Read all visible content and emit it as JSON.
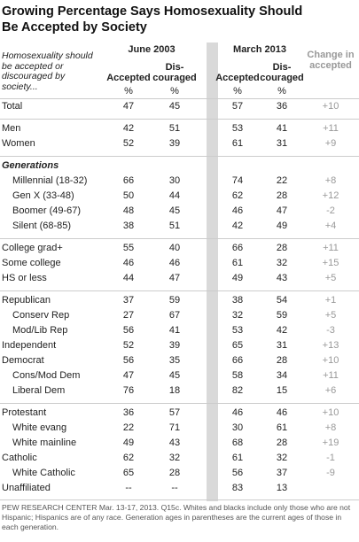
{
  "header": {
    "title": [
      "Growing Percentage Says Homosexuality Should",
      "Be Accepted by Society"
    ]
  },
  "table": {
    "intro": "Homosexuality should be accepted or discouraged by society...",
    "periods": [
      "June 2003",
      "March 2013"
    ],
    "change_header": "Change in accepted",
    "columns": [
      [
        "Accepted"
      ],
      [
        "Dis-",
        "couraged"
      ]
    ],
    "units": [
      "%",
      "%",
      "%",
      "%"
    ],
    "groups": [
      {
        "rows": [
          {
            "label": "Total",
            "cells": [
              "47",
              "45",
              "57",
              "36",
              "+10"
            ]
          }
        ]
      },
      {
        "rows": [
          {
            "label": "Men",
            "cells": [
              "42",
              "51",
              "53",
              "41",
              "+11"
            ]
          },
          {
            "label": "Women",
            "cells": [
              "52",
              "39",
              "61",
              "31",
              "+9"
            ]
          }
        ]
      },
      {
        "heading": "Generations",
        "rows": [
          {
            "label": "Millennial (18-32)",
            "cells": [
              "66",
              "30",
              "74",
              "22",
              "+8"
            ]
          },
          {
            "label": "Gen X (33-48)",
            "cells": [
              "50",
              "44",
              "62",
              "28",
              "+12"
            ]
          },
          {
            "label": "Boomer (49-67)",
            "cells": [
              "48",
              "45",
              "46",
              "47",
              "-2"
            ]
          },
          {
            "label": "Silent (68-85)",
            "cells": [
              "38",
              "51",
              "42",
              "49",
              "+4"
            ]
          }
        ]
      },
      {
        "rows": [
          {
            "label": "College grad+",
            "cells": [
              "55",
              "40",
              "66",
              "28",
              "+11"
            ]
          },
          {
            "label": "Some college",
            "cells": [
              "46",
              "46",
              "61",
              "32",
              "+15"
            ]
          },
          {
            "label": "HS or less",
            "cells": [
              "44",
              "47",
              "49",
              "43",
              "+5"
            ]
          }
        ]
      },
      {
        "rows": [
          {
            "label": "Republican",
            "cells": [
              "37",
              "59",
              "38",
              "54",
              "+1"
            ],
            "children": [
              {
                "label": "Conserv Rep",
                "cells": [
                  "27",
                  "67",
                  "32",
                  "59",
                  "+5"
                ]
              },
              {
                "label": "Mod/Lib Rep",
                "cells": [
                  "56",
                  "41",
                  "53",
                  "42",
                  "-3"
                ]
              }
            ]
          },
          {
            "label": "Independent",
            "cells": [
              "52",
              "39",
              "65",
              "31",
              "+13"
            ]
          },
          {
            "label": "Democrat",
            "cells": [
              "56",
              "35",
              "66",
              "28",
              "+10"
            ],
            "children": [
              {
                "label": "Cons/Mod Dem",
                "cells": [
                  "47",
                  "45",
                  "58",
                  "34",
                  "+11"
                ]
              },
              {
                "label": "Liberal Dem",
                "cells": [
                  "76",
                  "18",
                  "82",
                  "15",
                  "+6"
                ]
              }
            ]
          }
        ]
      },
      {
        "rows": [
          {
            "label": "Protestant",
            "cells": [
              "36",
              "57",
              "46",
              "46",
              "+10"
            ],
            "children": [
              {
                "label": "White evang",
                "cells": [
                  "22",
                  "71",
                  "30",
                  "61",
                  "+8"
                ]
              },
              {
                "label": "White mainline",
                "cells": [
                  "49",
                  "43",
                  "68",
                  "28",
                  "+19"
                ]
              }
            ]
          },
          {
            "label": "Catholic",
            "cells": [
              "62",
              "32",
              "61",
              "32",
              "-1"
            ],
            "children": [
              {
                "label": "White Catholic",
                "cells": [
                  "65",
                  "28",
                  "56",
                  "37",
                  "-9"
                ]
              }
            ]
          },
          {
            "label": "Unaffiliated",
            "cells": [
              "--",
              "--",
              "83",
              "13"
            ]
          }
        ]
      }
    ]
  },
  "footer": "PEW RESEARCH CENTER Mar. 13-17, 2013. Q15c. Whites and blacks include only those who are not Hispanic; Hispanics are of any race. Generation ages in parentheses are the current ages of those in each generation."
}
